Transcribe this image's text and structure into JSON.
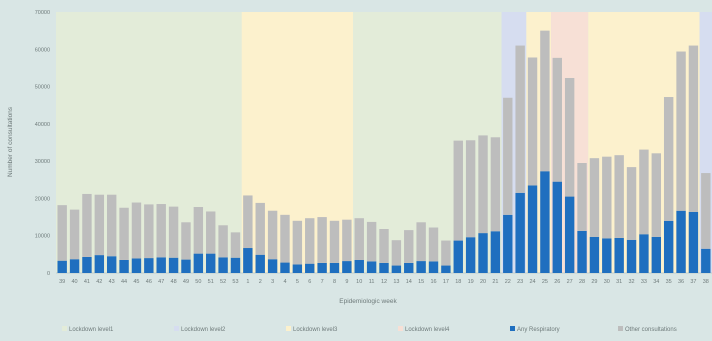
{
  "chart_data": {
    "type": "bar",
    "stacked": true,
    "xlabel": "Epidemiologic week",
    "ylabel": "Number of consultations",
    "ylim": [
      0,
      70000
    ],
    "yticks": [
      0,
      10000,
      20000,
      30000,
      40000,
      50000,
      60000,
      70000
    ],
    "categories": [
      "39",
      "40",
      "41",
      "42",
      "43",
      "44",
      "45",
      "46",
      "47",
      "48",
      "49",
      "50",
      "51",
      "52",
      "53",
      "1",
      "2",
      "3",
      "4",
      "5",
      "6",
      "7",
      "8",
      "9",
      "10",
      "11",
      "12",
      "13",
      "14",
      "15",
      "16",
      "17",
      "18",
      "19",
      "20",
      "21",
      "22",
      "23",
      "24",
      "25",
      "26",
      "27",
      "28",
      "29",
      "30",
      "31",
      "32",
      "33",
      "34",
      "35",
      "36",
      "37",
      "38"
    ],
    "series": [
      {
        "name": "Any Respiratory",
        "color": "#1f6fbf",
        "values": [
          3300,
          3700,
          4300,
          4800,
          4500,
          3500,
          3900,
          4000,
          4200,
          4100,
          3600,
          5200,
          5200,
          4200,
          4100,
          6700,
          4900,
          3700,
          2800,
          2300,
          2500,
          2700,
          2700,
          3200,
          3500,
          3100,
          2700,
          2000,
          2700,
          3200,
          3100,
          2000,
          8700,
          9600,
          10700,
          11200,
          15600,
          21500,
          23500,
          27300,
          24500,
          20500,
          11300,
          9700,
          9300,
          9400,
          8900,
          10400,
          9700,
          14000,
          16700,
          16400,
          6500
        ]
      },
      {
        "name": "Other consultations",
        "color": "#bdbdbd",
        "values": [
          14900,
          13300,
          16900,
          16200,
          16500,
          14000,
          15000,
          14400,
          14300,
          13700,
          10000,
          12500,
          11300,
          8600,
          6800,
          14100,
          13900,
          13000,
          12800,
          11700,
          12200,
          12300,
          11300,
          11100,
          11200,
          10600,
          9100,
          6800,
          8800,
          10400,
          9100,
          6700,
          26800,
          26000,
          26200,
          25200,
          31400,
          39500,
          34300,
          37700,
          33200,
          31800,
          18200,
          21100,
          21900,
          22200,
          19500,
          22700,
          22400,
          33200,
          42700,
          44600,
          20300
        ]
      }
    ],
    "lockdown_shading": [
      {
        "name": "Lockdown level1",
        "color": "#e3ecd9",
        "from": "39",
        "to": "53"
      },
      {
        "name": "Lockdown level3",
        "color": "#fcf1cd",
        "from": "1",
        "to": "9"
      },
      {
        "name": "Lockdown level1",
        "color": "#e3ecd9",
        "from": "10",
        "to": "21"
      },
      {
        "name": "Lockdown level2",
        "color": "#d6ddf0",
        "from": "22",
        "to": "23"
      },
      {
        "name": "Lockdown level3",
        "color": "#fcf1cd",
        "from": "24",
        "to": "25"
      },
      {
        "name": "Lockdown level4",
        "color": "#f7e0d6",
        "from": "26",
        "to": "28"
      },
      {
        "name": "Lockdown level3",
        "color": "#fcf1cd",
        "from": "29",
        "to": "37"
      },
      {
        "name": "Lockdown level2",
        "color": "#d6ddf0",
        "from": "38",
        "to": "38"
      }
    ],
    "legend": {
      "position": "bottom",
      "items": [
        {
          "label": "Lockdown level1",
          "color": "#e3ecd9"
        },
        {
          "label": "Lockdown level2",
          "color": "#d6ddf0"
        },
        {
          "label": "Lockdown level3",
          "color": "#fcf1cd"
        },
        {
          "label": "Lockdown level4",
          "color": "#f7e0d6"
        },
        {
          "label": "Any Respiratory",
          "color": "#1f6fbf"
        },
        {
          "label": "Other consultations",
          "color": "#bdbdbd"
        }
      ]
    },
    "grid": false
  }
}
